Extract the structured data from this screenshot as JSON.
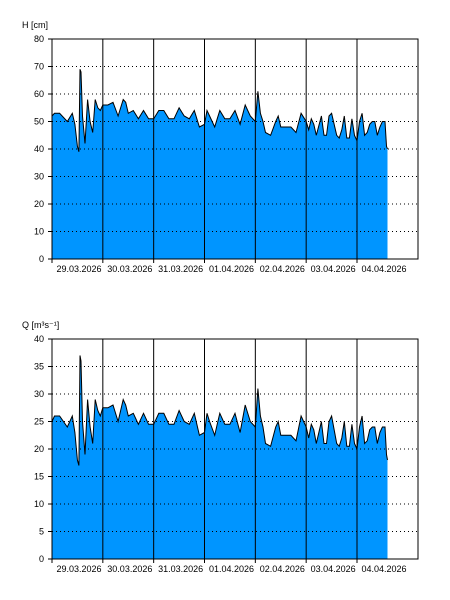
{
  "colors": {
    "fill": "#0095ff",
    "line": "#000000",
    "grid": "#000000",
    "background": "#ffffff"
  },
  "chart_data": [
    {
      "type": "area",
      "ylabel": "H [cm]",
      "ylim": [
        0,
        80
      ],
      "yticks": [
        0,
        10,
        20,
        30,
        40,
        50,
        60,
        70,
        80
      ],
      "xlim": [
        0,
        7.2
      ],
      "x_tick_labels": [
        "29.03.2026",
        "30.03.2026",
        "31.03.2026",
        "01.04.2026",
        "02.04.2026",
        "03.04.2026",
        "04.04.2026"
      ],
      "grid": true,
      "series": [
        {
          "x": [
            0,
            0.05,
            0.15,
            0.3,
            0.4,
            0.45,
            0.5,
            0.53,
            0.55,
            0.57,
            0.6,
            0.65,
            0.7,
            0.75,
            0.8,
            0.85,
            0.9,
            0.95,
            1.0,
            1.1,
            1.2,
            1.3,
            1.4,
            1.45,
            1.5,
            1.6,
            1.7,
            1.8,
            1.9,
            2.0,
            2.1,
            2.2,
            2.3,
            2.4,
            2.5,
            2.6,
            2.7,
            2.8,
            2.9,
            3.0,
            3.05,
            3.1,
            3.2,
            3.25,
            3.3,
            3.4,
            3.5,
            3.6,
            3.7,
            3.8,
            3.9,
            4.0,
            4.05,
            4.1,
            4.15,
            4.2,
            4.3,
            4.4,
            4.45,
            4.5,
            4.6,
            4.7,
            4.8,
            4.9,
            5.0,
            5.05,
            5.1,
            5.15,
            5.2,
            5.3,
            5.35,
            5.4,
            5.45,
            5.5,
            5.6,
            5.65,
            5.7,
            5.75,
            5.8,
            5.85,
            5.9,
            5.95,
            6.0,
            6.05,
            6.1,
            6.15,
            6.2,
            6.25,
            6.3,
            6.35,
            6.4,
            6.45,
            6.5,
            6.55,
            6.58,
            6.6
          ],
          "y": [
            52,
            53,
            53,
            50,
            53,
            49,
            41,
            39,
            69,
            68,
            52,
            42,
            58,
            50,
            46,
            58,
            55,
            54,
            56,
            56,
            57,
            52,
            58,
            57,
            53,
            54,
            51,
            54,
            51,
            51,
            54,
            54,
            51,
            51,
            55,
            52,
            51,
            54,
            48,
            49,
            54,
            52,
            48,
            51,
            54,
            51,
            51,
            54,
            49,
            56,
            52,
            50,
            61,
            53,
            50,
            46,
            45,
            50,
            52,
            48,
            48,
            48,
            46,
            53,
            50,
            47,
            51,
            49,
            45,
            52,
            45,
            45,
            52,
            53,
            45,
            44,
            47,
            52,
            44,
            44,
            51,
            45,
            43,
            50,
            53,
            45,
            46,
            49,
            50,
            50,
            45,
            48,
            50,
            50,
            41,
            40
          ]
        }
      ]
    },
    {
      "type": "area",
      "ylabel": "Q [m³s⁻¹]",
      "ylim": [
        0,
        40
      ],
      "yticks": [
        0,
        5,
        10,
        15,
        20,
        25,
        30,
        35,
        40
      ],
      "xlim": [
        0,
        7.2
      ],
      "x_tick_labels": [
        "29.03.2026",
        "30.03.2026",
        "31.03.2026",
        "01.04.2026",
        "02.04.2026",
        "03.04.2026",
        "04.04.2026"
      ],
      "grid": true,
      "series": [
        {
          "x": [
            0,
            0.05,
            0.15,
            0.3,
            0.4,
            0.45,
            0.5,
            0.53,
            0.55,
            0.57,
            0.6,
            0.65,
            0.7,
            0.75,
            0.8,
            0.85,
            0.9,
            0.95,
            1.0,
            1.1,
            1.2,
            1.3,
            1.4,
            1.45,
            1.5,
            1.6,
            1.7,
            1.8,
            1.9,
            2.0,
            2.1,
            2.2,
            2.3,
            2.4,
            2.5,
            2.6,
            2.7,
            2.8,
            2.9,
            3.0,
            3.05,
            3.1,
            3.2,
            3.25,
            3.3,
            3.4,
            3.5,
            3.6,
            3.7,
            3.8,
            3.9,
            4.0,
            4.05,
            4.1,
            4.15,
            4.2,
            4.3,
            4.4,
            4.45,
            4.5,
            4.6,
            4.7,
            4.8,
            4.9,
            5.0,
            5.05,
            5.1,
            5.15,
            5.2,
            5.3,
            5.35,
            5.4,
            5.45,
            5.5,
            5.6,
            5.65,
            5.7,
            5.75,
            5.8,
            5.85,
            5.9,
            5.95,
            6.0,
            6.05,
            6.1,
            6.15,
            6.2,
            6.25,
            6.3,
            6.35,
            6.4,
            6.45,
            6.5,
            6.55,
            6.58,
            6.6
          ],
          "y": [
            25,
            26,
            26,
            24,
            26,
            23,
            18,
            17,
            37,
            36,
            25,
            19,
            29,
            24,
            21,
            29,
            27,
            26,
            27.5,
            27.5,
            28,
            25,
            29,
            28,
            26,
            26.5,
            24.5,
            26.5,
            24.5,
            24.5,
            26.5,
            26.5,
            24.5,
            24.5,
            27,
            25,
            24.5,
            26.5,
            22.5,
            23,
            26.5,
            25,
            22.5,
            24.5,
            26.5,
            24.5,
            24.5,
            26.5,
            23,
            28,
            25,
            24,
            31,
            26,
            24,
            21,
            20.5,
            24,
            25,
            22.5,
            22.5,
            22.5,
            21.5,
            26,
            24,
            22,
            24.5,
            23.5,
            21,
            25,
            21,
            21,
            25,
            26,
            21,
            20.5,
            22,
            25,
            20.5,
            20.5,
            24.5,
            21,
            20,
            24,
            26,
            21,
            21.5,
            23.5,
            24,
            24,
            21,
            23,
            24,
            24,
            19,
            18
          ]
        }
      ]
    }
  ]
}
